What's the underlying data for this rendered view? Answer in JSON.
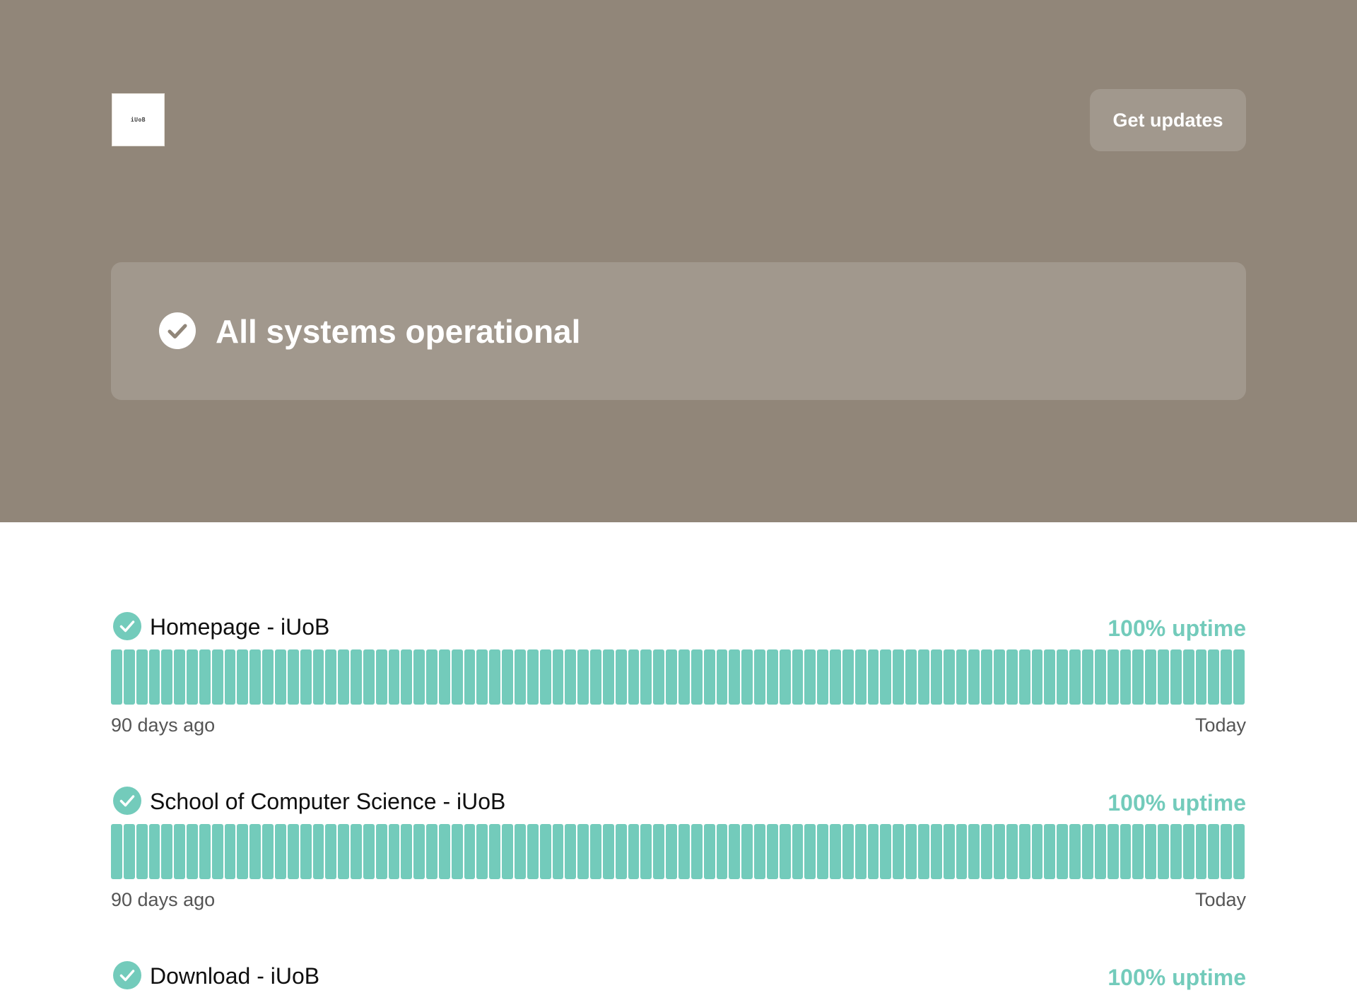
{
  "header": {
    "logo_text": "iUoB",
    "get_updates_label": "Get updates"
  },
  "status": {
    "label": "All systems operational"
  },
  "colors": {
    "header_background": "#918679",
    "operational": "#73cbbb",
    "text_primary": "#0f0f0f",
    "text_secondary": "#555555"
  },
  "components": [
    {
      "name": "Homepage - iUoB",
      "uptime": "100% uptime",
      "status": "operational",
      "days": 90,
      "range_start": "90 days ago",
      "range_end": "Today"
    },
    {
      "name": "School of Computer Science - iUoB",
      "uptime": "100% uptime",
      "status": "operational",
      "days": 90,
      "range_start": "90 days ago",
      "range_end": "Today"
    },
    {
      "name": "Download - iUoB",
      "uptime": "100% uptime",
      "status": "operational"
    }
  ]
}
